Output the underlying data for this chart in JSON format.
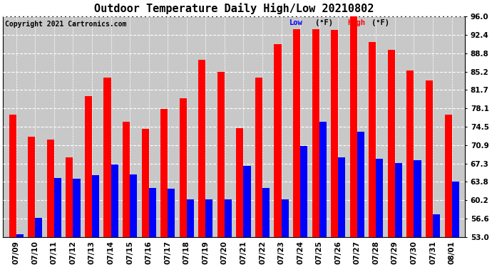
{
  "title": "Outdoor Temperature Daily High/Low 20210802",
  "copyright": "Copyright 2021 Cartronics.com",
  "legend_low": "Low",
  "legend_high": "High",
  "legend_unit": "(°F)",
  "dates": [
    "07/09",
    "07/10",
    "07/11",
    "07/12",
    "07/13",
    "07/14",
    "07/15",
    "07/16",
    "07/17",
    "07/18",
    "07/19",
    "07/20",
    "07/21",
    "07/22",
    "07/23",
    "07/24",
    "07/25",
    "07/26",
    "07/27",
    "07/28",
    "07/29",
    "07/30",
    "07/31",
    "08/01"
  ],
  "highs": [
    76.8,
    72.5,
    72.0,
    68.5,
    80.4,
    84.0,
    75.5,
    74.0,
    78.0,
    80.0,
    87.5,
    85.2,
    74.2,
    84.0,
    90.5,
    93.4,
    93.4,
    93.3,
    96.2,
    91.0,
    89.5,
    85.4,
    83.5,
    76.8
  ],
  "lows": [
    53.5,
    56.8,
    64.5,
    64.4,
    65.0,
    67.2,
    65.2,
    62.5,
    62.4,
    60.4,
    60.4,
    60.4,
    66.8,
    62.5,
    60.4,
    70.8,
    75.4,
    68.5,
    73.5,
    68.2,
    67.4,
    68.0,
    57.5,
    63.8
  ],
  "high_color": "#FF0000",
  "low_color": "#0000FF",
  "bg_color": "#FFFFFF",
  "plot_bg_color": "#C8C8C8",
  "grid_color": "#FFFFFF",
  "ylim_min": 53.0,
  "ylim_max": 96.0,
  "yticks": [
    53.0,
    56.6,
    60.2,
    63.8,
    67.3,
    70.9,
    74.5,
    78.1,
    81.7,
    85.2,
    88.8,
    92.4,
    96.0
  ],
  "title_fontsize": 11,
  "copyright_fontsize": 7,
  "tick_fontsize": 7.5,
  "bar_width": 0.38
}
